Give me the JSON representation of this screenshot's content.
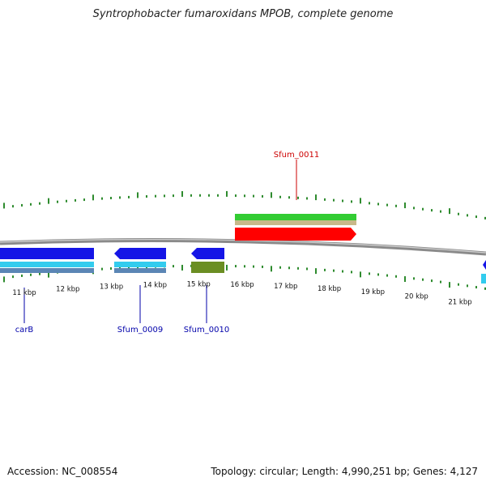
{
  "title": "Syntrophobacter fumaroxidans MPOB, complete genome",
  "footer": {
    "accession": "Accession: NC_008554",
    "summary": "Topology: circular; Length: 4,990,251 bp; Genes: 4,127"
  },
  "colors": {
    "backbone": "#8a8a8a",
    "tick": "#2e8b2e",
    "forward_cds": "#ff0000",
    "forward_gene": "#33cc33",
    "forward_rna": "#c8b98a",
    "reverse_cds": "#1515e6",
    "reverse_gene": "#33ccee",
    "reverse_rna": "#5b86b5",
    "reverse_other": "#6b8e23",
    "label_reverse": "#0000aa",
    "label_forward": "#cc0000"
  },
  "scale": {
    "labels": [
      "11 kbp",
      "12 kbp",
      "13 kbp",
      "14 kbp",
      "15 kbp",
      "16 kbp",
      "17 kbp",
      "18 kbp",
      "19 kbp",
      "20 kbp",
      "21 kbp"
    ]
  },
  "feature_labels": [
    {
      "name": "carB",
      "strand": "reverse"
    },
    {
      "name": "Sfum_0009",
      "strand": "reverse"
    },
    {
      "name": "Sfum_0010",
      "strand": "reverse"
    },
    {
      "name": "Sfum_0011",
      "strand": "forward"
    }
  ]
}
